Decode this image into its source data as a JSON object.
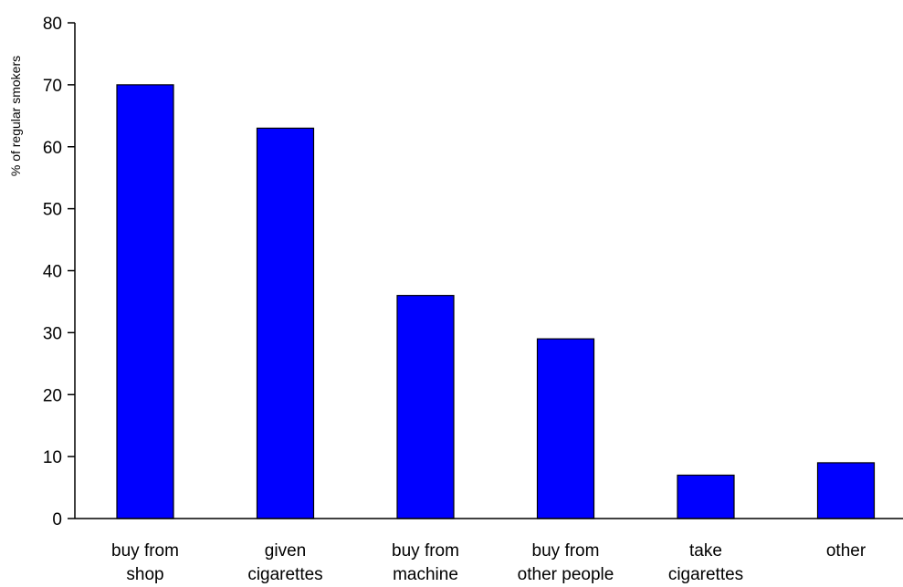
{
  "chart_data": {
    "type": "bar",
    "title": "",
    "xlabel": "",
    "ylabel": "% of regular smokers",
    "ylim": [
      0,
      80
    ],
    "yticks": [
      0,
      10,
      20,
      30,
      40,
      50,
      60,
      70,
      80
    ],
    "categories": [
      [
        "buy from",
        "shop"
      ],
      [
        "given",
        "cigarettes"
      ],
      [
        "buy from",
        "machine"
      ],
      [
        "buy from",
        "other people"
      ],
      [
        "take",
        "cigarettes"
      ],
      [
        "other"
      ]
    ],
    "values": [
      70,
      63,
      36,
      29,
      7,
      9
    ],
    "grid": false,
    "legend": "none",
    "colors": {
      "bar_fill": "#0000ff",
      "bar_stroke": "#000000",
      "axis": "#000000",
      "background": "#ffffff"
    }
  }
}
